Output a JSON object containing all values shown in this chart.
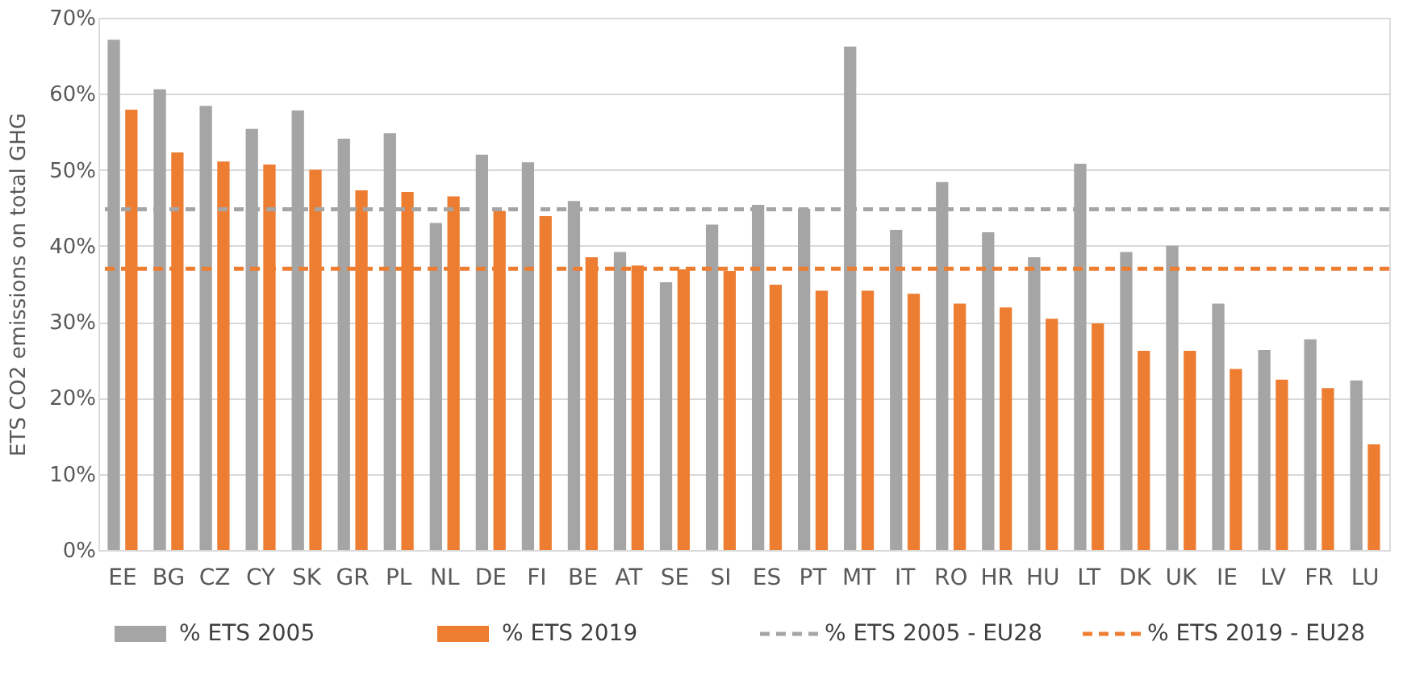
{
  "chart_data": {
    "type": "bar",
    "ylabel": "ETS CO2 emissions on total GHG",
    "categories": [
      "EE",
      "BG",
      "CZ",
      "CY",
      "SK",
      "GR",
      "PL",
      "NL",
      "DE",
      "FI",
      "BE",
      "AT",
      "SE",
      "SI",
      "ES",
      "PT",
      "MT",
      "IT",
      "RO",
      "HR",
      "HU",
      "LT",
      "DK",
      "UK",
      "IE",
      "LV",
      "FR",
      "LU"
    ],
    "series": [
      {
        "name": "% ETS 2005",
        "color": "#a5a5a5",
        "values": [
          67.1,
          60.6,
          58.4,
          55.4,
          57.8,
          54.1,
          54.8,
          43.0,
          52.0,
          51.0,
          45.9,
          39.2,
          35.2,
          42.8,
          45.4,
          44.9,
          66.2,
          42.1,
          48.4,
          41.8,
          38.5,
          50.8,
          39.2,
          40.0,
          32.4,
          26.3,
          27.7,
          22.3
        ]
      },
      {
        "name": "% ETS 2019",
        "color": "#ed7d31",
        "values": [
          57.9,
          52.3,
          51.1,
          50.7,
          50.0,
          47.3,
          47.1,
          46.5,
          44.6,
          43.9,
          38.5,
          37.4,
          36.9,
          36.7,
          34.9,
          34.1,
          34.1,
          33.7,
          32.4,
          31.9,
          30.4,
          29.8,
          26.2,
          26.2,
          23.8,
          22.4,
          21.3,
          13.9
        ]
      }
    ],
    "ref_lines": [
      {
        "axis": "y",
        "value": 44.8,
        "label": "% ETS 2005 - EU28",
        "color": "#a5a5a5",
        "line_style": "dashed"
      },
      {
        "axis": "y",
        "value": 37.0,
        "label": "% ETS 2019 - EU28",
        "color": "#ed7d31",
        "line_style": "dashed"
      }
    ],
    "ylim": [
      0,
      70
    ],
    "yticks": [
      {
        "value": 0,
        "label": "0%"
      },
      {
        "value": 10,
        "label": "10%"
      },
      {
        "value": 20,
        "label": "20%"
      },
      {
        "value": 30,
        "label": "30%"
      },
      {
        "value": 40,
        "label": "40%"
      },
      {
        "value": 50,
        "label": "50%"
      },
      {
        "value": 60,
        "label": "60%"
      },
      {
        "value": 70,
        "label": "70%"
      }
    ],
    "grid": "y",
    "legend": "bottom"
  }
}
